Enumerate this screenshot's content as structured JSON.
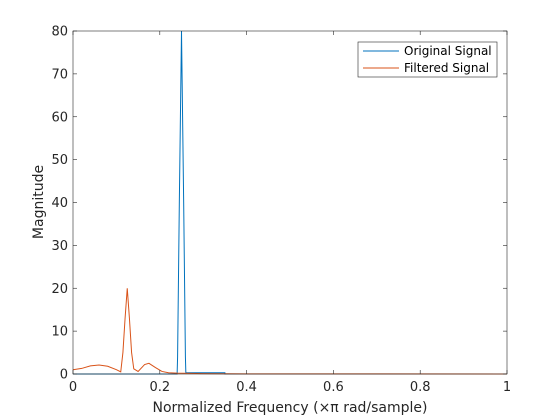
{
  "chart_data": {
    "type": "line",
    "title": "",
    "xlabel": "Normalized Frequency (×π rad/sample)",
    "ylabel": "Magnitude",
    "xlim": [
      0,
      1
    ],
    "ylim": [
      0,
      80
    ],
    "x_ticks": [
      "0",
      "0.2",
      "0.4",
      "0.6",
      "0.8",
      "1"
    ],
    "y_ticks": [
      "0",
      "10",
      "20",
      "30",
      "40",
      "50",
      "60",
      "70",
      "80"
    ],
    "grid": false,
    "legend_position": "top-right",
    "series": [
      {
        "name": "Original Signal",
        "color": "#0072BD",
        "x": [
          0,
          0.24,
          0.24,
          0.241,
          0.245,
          0.25,
          0.255,
          0.259,
          0.26,
          0.26,
          0.35,
          0.35,
          1.0
        ],
        "y": [
          0,
          0,
          0.3,
          4,
          40,
          80,
          40,
          4,
          0.3,
          0.3,
          0.3,
          0,
          0
        ]
      },
      {
        "name": "Filtered Signal",
        "color": "#D95319",
        "x": [
          0,
          0.02,
          0.04,
          0.06,
          0.08,
          0.1,
          0.11,
          0.115,
          0.12,
          0.125,
          0.13,
          0.135,
          0.14,
          0.15,
          0.165,
          0.175,
          0.19,
          0.205,
          0.22,
          0.24,
          0.27,
          0.3,
          0.35,
          0.4,
          0.5,
          1.0
        ],
        "y": [
          1.0,
          1.3,
          1.9,
          2.1,
          1.8,
          1.0,
          0.5,
          5,
          13,
          20,
          13,
          5,
          1.2,
          0.6,
          2.2,
          2.5,
          1.5,
          0.6,
          0.3,
          0.2,
          0.15,
          0.1,
          0.05,
          0.03,
          0.02,
          0.01
        ]
      }
    ]
  }
}
